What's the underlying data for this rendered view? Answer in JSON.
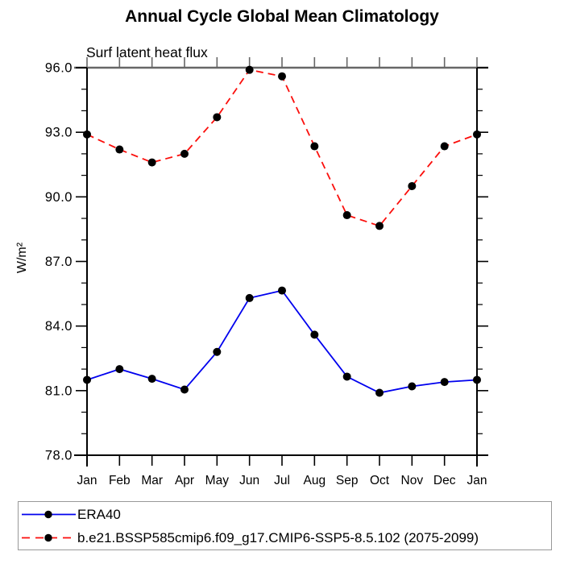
{
  "title": "Annual Cycle Global Mean Climatology",
  "subtitle": "Surf latent heat flux",
  "ylabel": "W/m²",
  "colors": {
    "era40_line": "#0000ee",
    "model_line": "#fb0f0c",
    "marker": "#000000",
    "axis": "#000000",
    "top_axis": "#676767",
    "legend_border": "#999999"
  },
  "chart_data": {
    "type": "line",
    "categories": [
      "Jan",
      "Feb",
      "Mar",
      "Apr",
      "May",
      "Jun",
      "Jul",
      "Aug",
      "Sep",
      "Oct",
      "Nov",
      "Dec",
      "Jan"
    ],
    "series": [
      {
        "name": "ERA40",
        "color": "#0000ee",
        "style": "solid",
        "marker": "circle",
        "marker_color": "#000000",
        "values": [
          81.5,
          82.0,
          81.55,
          81.05,
          82.8,
          85.3,
          85.65,
          83.6,
          81.65,
          80.9,
          81.2,
          81.4,
          81.5
        ]
      },
      {
        "name": "b.e21.BSSP585cmip6.f09_g17.CMIP6-SSP5-8.5.102 (2075-2099)",
        "color": "#fb0f0c",
        "style": "dashed",
        "marker": "circle",
        "marker_color": "#000000",
        "values": [
          92.9,
          92.2,
          91.6,
          92.0,
          93.7,
          95.9,
          95.6,
          92.35,
          89.15,
          88.65,
          90.5,
          92.35,
          92.9
        ]
      }
    ],
    "xlabel": "",
    "ylabel": "W/m²",
    "ylim": [
      78.0,
      96.0
    ],
    "ytick_major": [
      78.0,
      81.0,
      84.0,
      87.0,
      90.0,
      93.0,
      96.0
    ],
    "ytick_minor_interval": 1.0,
    "grid": false,
    "legend_position": "bottom"
  }
}
